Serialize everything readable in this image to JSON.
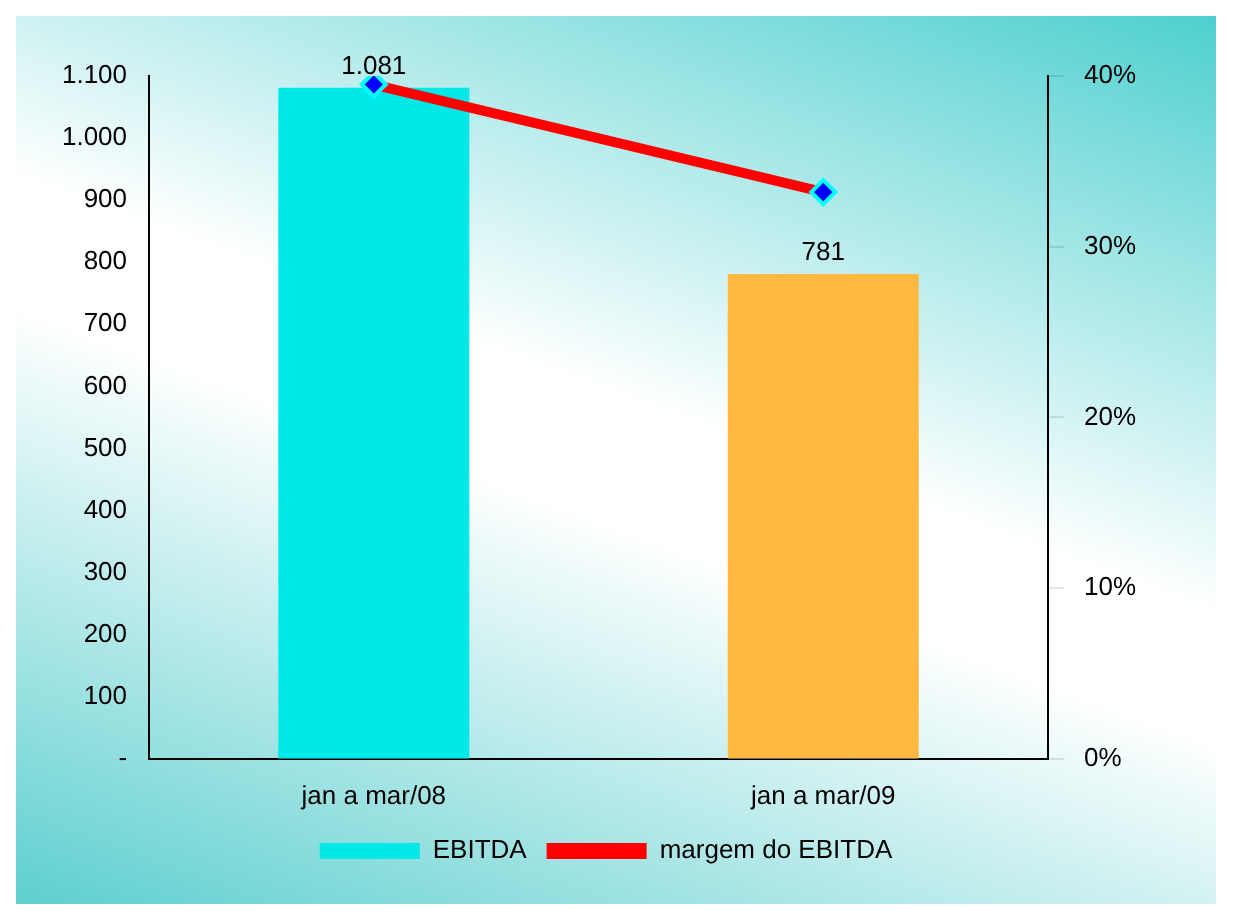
{
  "chart_data": {
    "type": "bar",
    "categories": [
      "jan a mar/08",
      "jan a mar/09"
    ],
    "series": [
      {
        "name": "EBITDA",
        "colors": [
          "#00e8e8",
          "#ffb840"
        ],
        "values": [
          1081,
          781
        ],
        "value_labels": [
          "1.081",
          "781"
        ]
      },
      {
        "name": "margem do EBITDA",
        "type": "line",
        "axis": "y2",
        "color": "#ff0000",
        "values": [
          39.5,
          33.2
        ],
        "marker": "diamond"
      }
    ],
    "ylim": [
      0,
      1100
    ],
    "yticks": [
      {
        "value": 0,
        "label": "-"
      },
      {
        "value": 100,
        "label": "100"
      },
      {
        "value": 200,
        "label": "200"
      },
      {
        "value": 300,
        "label": "300"
      },
      {
        "value": 400,
        "label": "400"
      },
      {
        "value": 500,
        "label": "500"
      },
      {
        "value": 600,
        "label": "600"
      },
      {
        "value": 700,
        "label": "700"
      },
      {
        "value": 800,
        "label": "800"
      },
      {
        "value": 900,
        "label": "900"
      },
      {
        "value": 1000,
        "label": "1.000"
      },
      {
        "value": 1100,
        "label": "1.100"
      }
    ],
    "y2lim": [
      0,
      40
    ],
    "y2ticks": [
      {
        "value": 0,
        "label": "0%"
      },
      {
        "value": 10,
        "label": "10%"
      },
      {
        "value": 20,
        "label": "20%"
      },
      {
        "value": 30,
        "label": "30%"
      },
      {
        "value": 40,
        "label": "40%"
      }
    ],
    "grid": false,
    "legend": "bottom"
  }
}
